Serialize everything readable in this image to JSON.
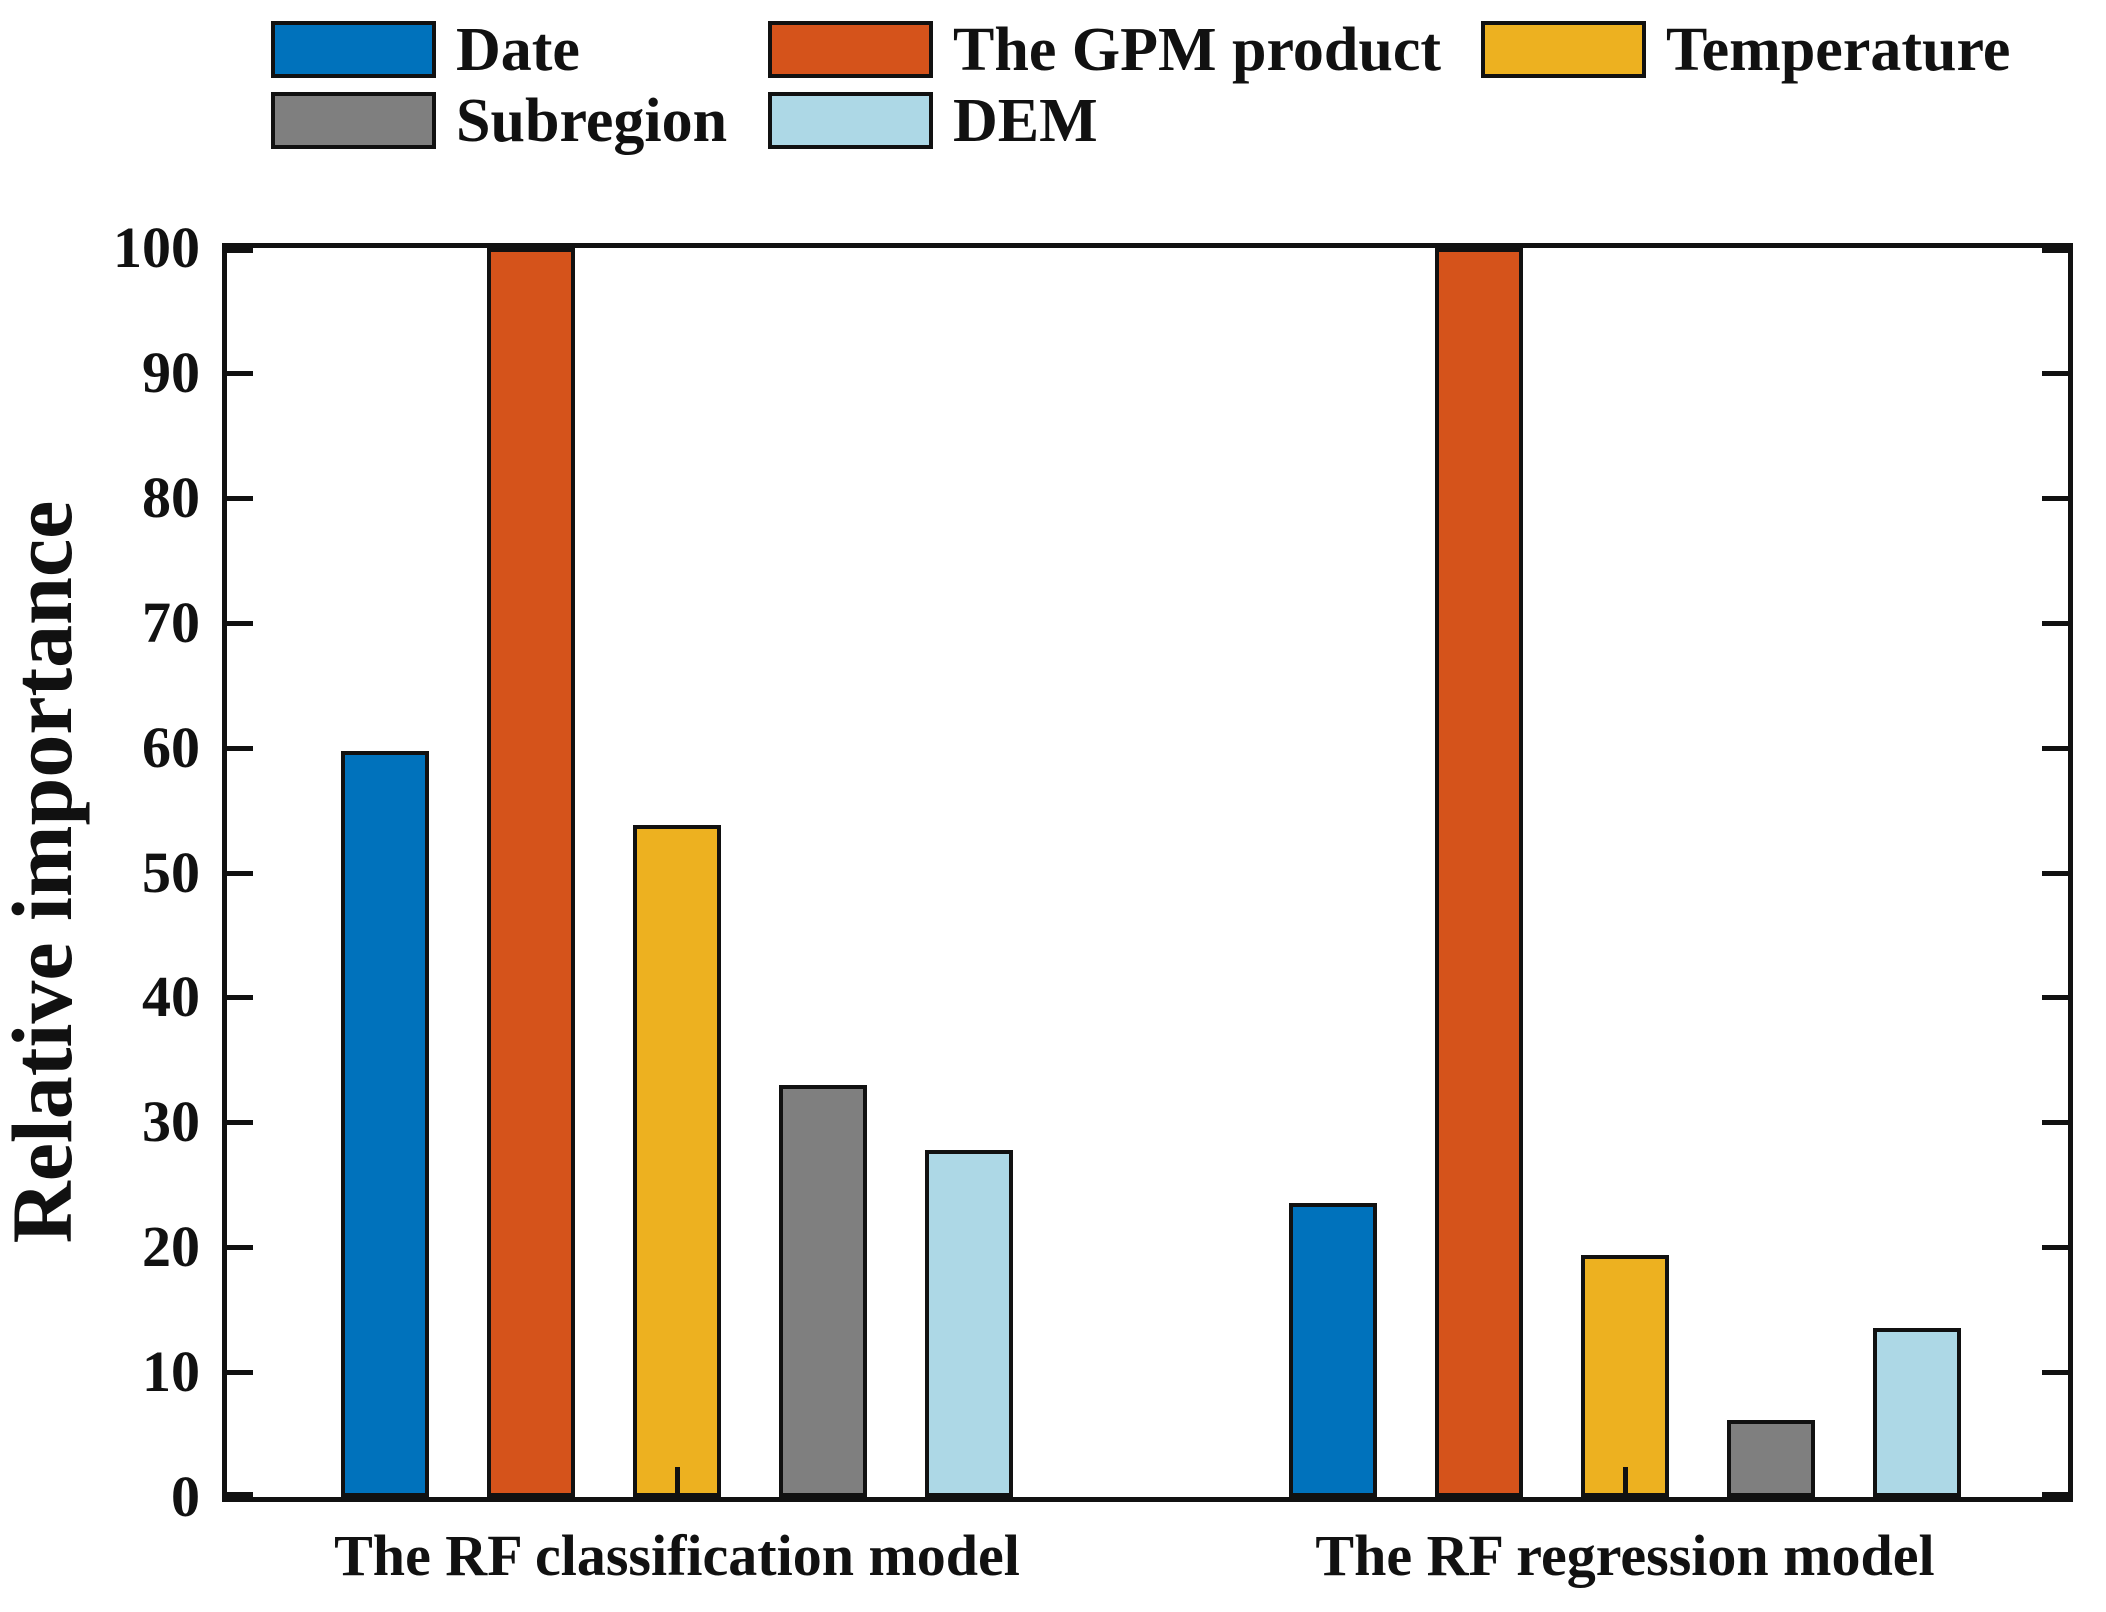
{
  "chart_data": {
    "type": "bar",
    "title": "",
    "ylabel": "Relative importance",
    "xlabel": "",
    "ylim": [
      0,
      100
    ],
    "yticks": [
      0,
      10,
      20,
      30,
      40,
      50,
      60,
      70,
      80,
      90,
      100
    ],
    "grid": false,
    "legend_position": "top",
    "categories": [
      "The RF classification model",
      "The RF regression model"
    ],
    "series": [
      {
        "name": "Date",
        "color": "#0072BC",
        "values": [
          59.7,
          23.5
        ]
      },
      {
        "name": "The GPM product",
        "color": "#D5531B",
        "values": [
          100.0,
          100.0
        ]
      },
      {
        "name": "Temperature",
        "color": "#EDB120",
        "values": [
          53.8,
          19.4
        ]
      },
      {
        "name": "Subregion",
        "color": "#7F7F7F",
        "values": [
          33.0,
          6.2
        ]
      },
      {
        "name": "DEM",
        "color": "#ADD8E6",
        "values": [
          27.8,
          13.5
        ]
      }
    ],
    "axis_color": "#111111",
    "bar_edge_color": "#111111"
  }
}
